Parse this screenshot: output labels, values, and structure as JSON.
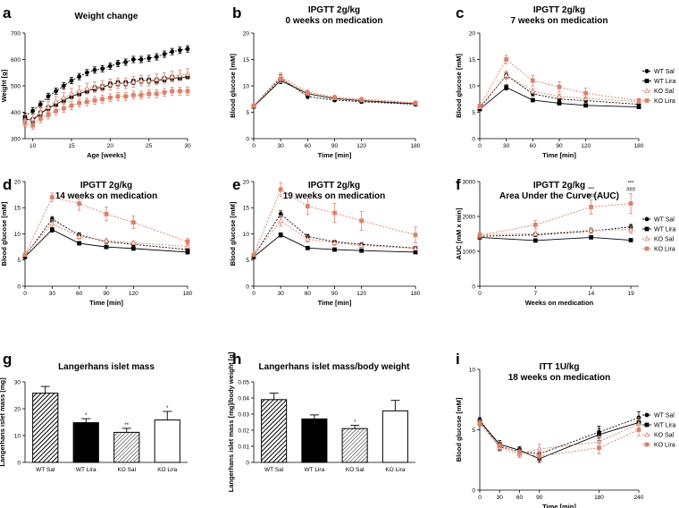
{
  "colors": {
    "wt_sal": "#000000",
    "wt_lira": "#000000",
    "ko_sal": "#d9826a",
    "ko_lira": "#d9826a",
    "grid": "#000000"
  },
  "chart_data": [
    {
      "id": "a",
      "panel_label": "a",
      "type": "line",
      "title": "Weight change",
      "xlabel": "Age [weeks]",
      "ylabel": "Weight [g]",
      "xlim": [
        9,
        30
      ],
      "ylim": [
        300,
        700
      ],
      "xticks": [
        10,
        15,
        20,
        25,
        30
      ],
      "yticks": [
        300,
        400,
        500,
        600,
        700
      ],
      "x": [
        9,
        10,
        11,
        12,
        13,
        14,
        15,
        16,
        17,
        18,
        19,
        20,
        21,
        22,
        23,
        24,
        25,
        26,
        27,
        28,
        29,
        30
      ],
      "series": [
        {
          "name": "WT Sal",
          "style": "wt_sal",
          "values": [
            385,
            405,
            430,
            460,
            480,
            500,
            520,
            535,
            550,
            560,
            565,
            575,
            585,
            590,
            600,
            600,
            605,
            610,
            620,
            630,
            635,
            640
          ],
          "err": [
            12,
            12,
            12,
            12,
            12,
            12,
            12,
            12,
            12,
            12,
            12,
            12,
            12,
            12,
            12,
            12,
            12,
            12,
            12,
            12,
            12,
            12
          ]
        },
        {
          "name": "WT Lira",
          "style": "wt_lira",
          "values": [
            375,
            370,
            395,
            415,
            430,
            445,
            460,
            470,
            480,
            490,
            495,
            505,
            510,
            510,
            515,
            520,
            520,
            520,
            525,
            530,
            530,
            535
          ],
          "err": [
            10,
            10,
            10,
            10,
            10,
            10,
            10,
            10,
            10,
            10,
            10,
            10,
            10,
            10,
            10,
            10,
            10,
            10,
            10,
            10,
            10,
            10
          ]
        },
        {
          "name": "KO Sal",
          "style": "ko_sal",
          "values": [
            370,
            375,
            400,
            420,
            440,
            455,
            470,
            480,
            490,
            495,
            500,
            505,
            510,
            510,
            515,
            520,
            520,
            525,
            530,
            535,
            540,
            545
          ],
          "err": [
            20,
            20,
            20,
            20,
            20,
            20,
            20,
            20,
            20,
            20,
            20,
            20,
            20,
            20,
            20,
            20,
            20,
            20,
            20,
            20,
            20,
            20
          ]
        },
        {
          "name": "KO Lira",
          "style": "ko_lira",
          "values": [
            360,
            350,
            375,
            390,
            405,
            415,
            425,
            435,
            440,
            445,
            450,
            455,
            460,
            460,
            465,
            465,
            470,
            470,
            475,
            480,
            480,
            480
          ],
          "err": [
            15,
            15,
            15,
            15,
            15,
            15,
            15,
            15,
            15,
            15,
            15,
            15,
            15,
            15,
            15,
            15,
            15,
            15,
            15,
            15,
            15,
            15
          ]
        }
      ]
    },
    {
      "id": "b",
      "panel_label": "b",
      "type": "line",
      "title": "IPGTT 2g/kg",
      "subtitle": "0 weeks on medication",
      "xlabel": "Time [min]",
      "ylabel": "Blood glucose [mM]",
      "xlim": [
        0,
        180
      ],
      "ylim": [
        0,
        20
      ],
      "xticks": [
        0,
        30,
        60,
        90,
        120,
        180
      ],
      "yticks": [
        0,
        5,
        10,
        15,
        20
      ],
      "x": [
        0,
        30,
        60,
        90,
        120,
        180
      ],
      "series": [
        {
          "name": "WT Sal",
          "style": "wt_sal",
          "values": [
            6.2,
            11.5,
            8.0,
            7.3,
            7.0,
            6.5
          ],
          "err": [
            0.3,
            0.6,
            0.4,
            0.3,
            0.3,
            0.3
          ]
        },
        {
          "name": "WT Lira",
          "style": "wt_lira",
          "values": [
            6.1,
            11.0,
            8.5,
            7.6,
            7.2,
            6.6
          ],
          "err": [
            0.3,
            0.6,
            0.4,
            0.3,
            0.3,
            0.3
          ]
        },
        {
          "name": "KO Sal",
          "style": "ko_sal",
          "values": [
            6.3,
            11.8,
            8.8,
            7.9,
            7.5,
            6.8
          ],
          "err": [
            0.3,
            0.7,
            0.4,
            0.3,
            0.3,
            0.3
          ]
        },
        {
          "name": "KO Lira",
          "style": "ko_lira",
          "values": [
            6.2,
            11.3,
            8.6,
            7.7,
            7.3,
            6.7
          ],
          "err": [
            0.3,
            0.6,
            0.4,
            0.3,
            0.3,
            0.3
          ]
        }
      ]
    },
    {
      "id": "c",
      "panel_label": "c",
      "type": "line",
      "title": "IPGTT 2g/kg",
      "subtitle": "7 weeks on medication",
      "xlabel": "Time [min]",
      "ylabel": "Blood glucose [mM]",
      "xlim": [
        0,
        180
      ],
      "ylim": [
        0,
        20
      ],
      "xticks": [
        0,
        30,
        60,
        90,
        120,
        180
      ],
      "yticks": [
        0,
        5,
        10,
        15,
        20
      ],
      "x": [
        0,
        30,
        60,
        90,
        120,
        180
      ],
      "legend": [
        "WT Sal",
        "WT Lira",
        "KO Sal",
        "KO Lira"
      ],
      "series": [
        {
          "name": "WT Sal",
          "style": "wt_sal",
          "values": [
            5.8,
            12.0,
            8.5,
            7.5,
            7.2,
            6.5
          ],
          "err": [
            0.3,
            0.5,
            0.4,
            0.3,
            0.3,
            0.3
          ]
        },
        {
          "name": "WT Lira",
          "style": "wt_lira",
          "values": [
            5.6,
            9.7,
            7.3,
            6.7,
            6.3,
            6.0
          ],
          "err": [
            0.3,
            0.5,
            0.3,
            0.3,
            0.3,
            0.3
          ]
        },
        {
          "name": "KO Sal",
          "style": "ko_sal",
          "values": [
            6.0,
            12.0,
            9.0,
            8.0,
            7.6,
            7.0
          ],
          "err": [
            0.3,
            0.8,
            0.5,
            0.4,
            0.3,
            0.3
          ]
        },
        {
          "name": "KO Lira",
          "style": "ko_lira",
          "values": [
            6.2,
            15.0,
            11.0,
            9.8,
            8.6,
            7.2
          ],
          "err": [
            0.3,
            0.8,
            1.0,
            1.0,
            1.0,
            0.4
          ]
        }
      ]
    },
    {
      "id": "d",
      "panel_label": "d",
      "type": "line",
      "title": "IPGTT 2g/kg",
      "subtitle": "14 weeks on medication",
      "xlabel": "Time [min]",
      "ylabel": "Blood glucose [mM]",
      "xlim": [
        0,
        180
      ],
      "ylim": [
        0,
        20
      ],
      "xticks": [
        0,
        30,
        60,
        90,
        120,
        180
      ],
      "yticks": [
        0,
        5,
        10,
        15,
        20
      ],
      "x": [
        0,
        30,
        60,
        90,
        120,
        180
      ],
      "series": [
        {
          "name": "WT Sal",
          "style": "wt_sal",
          "values": [
            5.8,
            12.8,
            9.8,
            8.5,
            8.0,
            7.0
          ],
          "err": [
            0.3,
            0.5,
            0.4,
            0.3,
            0.3,
            0.3
          ]
        },
        {
          "name": "WT Lira",
          "style": "wt_lira",
          "values": [
            5.6,
            10.8,
            8.2,
            7.5,
            7.2,
            6.5
          ],
          "err": [
            0.3,
            0.5,
            0.3,
            0.3,
            0.3,
            0.3
          ]
        },
        {
          "name": "KO Sal",
          "style": "ko_sal",
          "values": [
            6.0,
            12.0,
            9.5,
            8.7,
            8.3,
            7.6
          ],
          "err": [
            0.3,
            0.7,
            0.5,
            0.4,
            0.3,
            0.3
          ]
        },
        {
          "name": "KO Lira",
          "style": "ko_lira",
          "values": [
            6.0,
            17.0,
            15.8,
            13.8,
            12.2,
            8.5
          ],
          "err": [
            0.3,
            0.8,
            1.3,
            1.3,
            1.2,
            0.6
          ]
        }
      ]
    },
    {
      "id": "e",
      "panel_label": "e",
      "type": "line",
      "title": "IPGTT 2g/kg",
      "subtitle": "19 weeks on medication",
      "xlabel": "Time [min]",
      "ylabel": "Blood glucose [mM]",
      "xlim": [
        0,
        180
      ],
      "ylim": [
        0,
        20
      ],
      "xticks": [
        0,
        30,
        60,
        90,
        120,
        180
      ],
      "yticks": [
        0,
        5,
        10,
        15,
        20
      ],
      "x": [
        0,
        30,
        60,
        90,
        120,
        180
      ],
      "series": [
        {
          "name": "WT Sal",
          "style": "wt_sal",
          "values": [
            5.8,
            13.8,
            9.5,
            8.5,
            8.0,
            7.3
          ],
          "err": [
            0.3,
            0.6,
            0.4,
            0.3,
            0.3,
            0.3
          ]
        },
        {
          "name": "WT Lira",
          "style": "wt_lira",
          "values": [
            5.6,
            9.8,
            7.3,
            7.0,
            6.8,
            6.5
          ],
          "err": [
            0.3,
            0.4,
            0.3,
            0.3,
            0.3,
            0.3
          ]
        },
        {
          "name": "KO Sal",
          "style": "ko_sal",
          "values": [
            6.0,
            12.5,
            9.0,
            8.3,
            7.8,
            7.2
          ],
          "err": [
            0.3,
            1.0,
            0.6,
            0.5,
            0.4,
            0.3
          ]
        },
        {
          "name": "KO Lira",
          "style": "ko_lira",
          "values": [
            6.0,
            18.5,
            15.3,
            14.0,
            12.5,
            9.8
          ],
          "err": [
            0.3,
            1.3,
            1.6,
            1.8,
            1.8,
            1.5
          ]
        }
      ]
    },
    {
      "id": "f",
      "panel_label": "f",
      "type": "line",
      "title": "IPGTT 2g/kg",
      "subtitle": "Area Under the Curve (AUC)",
      "xlabel": "Weeks on medication",
      "ylabel": "AUC [mM x min]",
      "xlim": [
        0,
        20
      ],
      "ylim": [
        0,
        3000
      ],
      "xticks": [
        0,
        7,
        14,
        19
      ],
      "yticks": [
        0,
        1000,
        2000,
        3000
      ],
      "x": [
        0,
        7,
        14,
        19
      ],
      "legend": [
        "WT Sal",
        "WT Lira",
        "KO Sal",
        "KO Lira"
      ],
      "annotations": [
        {
          "x": 14,
          "lines": [
            "***",
            "###"
          ]
        },
        {
          "x": 19,
          "lines": [
            "***",
            "###"
          ]
        }
      ],
      "series": [
        {
          "name": "WT Sal",
          "style": "wt_sal",
          "values": [
            1430,
            1470,
            1580,
            1700
          ],
          "err": [
            50,
            50,
            60,
            70
          ]
        },
        {
          "name": "WT Lira",
          "style": "wt_lira",
          "values": [
            1400,
            1310,
            1400,
            1320
          ],
          "err": [
            40,
            40,
            40,
            40
          ]
        },
        {
          "name": "KO Sal",
          "style": "ko_sal",
          "values": [
            1480,
            1500,
            1600,
            1620
          ],
          "err": [
            60,
            60,
            80,
            100
          ]
        },
        {
          "name": "KO Lira",
          "style": "ko_lira",
          "values": [
            1460,
            1760,
            2270,
            2370
          ],
          "err": [
            80,
            120,
            200,
            280
          ]
        }
      ]
    },
    {
      "id": "g",
      "panel_label": "g",
      "type": "bar",
      "title": "Langerhans islet mass",
      "ylabel": "Langerhans islet mass [mg]",
      "ylim": [
        0,
        30
      ],
      "yticks": [
        0,
        10,
        20,
        30
      ],
      "categories": [
        "WT Sal",
        "WT Lira",
        "KO Sal",
        "KO Lira"
      ],
      "fills": [
        "hatch-dense",
        "solid",
        "hatch-light",
        "white"
      ],
      "values": [
        25.8,
        14.8,
        11.2,
        15.8
      ],
      "err": [
        2.5,
        1.5,
        1.5,
        3.2
      ],
      "sig": [
        "",
        "*",
        "**",
        "*"
      ]
    },
    {
      "id": "h",
      "panel_label": "h",
      "type": "bar",
      "title": "Langerhans islet mass/body weight",
      "ylabel": "Langerhans islet mass [mg]/body weight [g]",
      "ylim": [
        0,
        0.05
      ],
      "yticks": [
        0,
        0.01,
        0.02,
        0.03,
        0.04,
        0.05
      ],
      "yticklabels": [
        "0",
        "0.01",
        "0.02",
        "0.03",
        "0.04",
        "0.05"
      ],
      "categories": [
        "WT Sal",
        "WT Lira",
        "KO Sal",
        "KO Lira"
      ],
      "fills": [
        "hatch-dense",
        "solid",
        "hatch-light",
        "white"
      ],
      "values": [
        0.039,
        0.027,
        0.021,
        0.032
      ],
      "err": [
        0.004,
        0.0025,
        0.002,
        0.0065
      ],
      "sig": [
        "",
        "",
        "*",
        ""
      ]
    },
    {
      "id": "i",
      "panel_label": "i",
      "type": "line",
      "title": "ITT 1U/kg",
      "subtitle": "18 weeks on medication",
      "xlabel": "Time [min]",
      "ylabel": "Blood glucose [mM]",
      "xlim": [
        0,
        240
      ],
      "ylim": [
        0,
        10
      ],
      "xticks": [
        0,
        30,
        60,
        90,
        180,
        240
      ],
      "yticks": [
        0,
        5,
        10
      ],
      "x": [
        0,
        30,
        60,
        90,
        180,
        240
      ],
      "legend": [
        "WT Sal",
        "WT Lira",
        "KO Sal",
        "KO Lira"
      ],
      "series": [
        {
          "name": "WT Sal",
          "style": "wt_sal",
          "values": [
            5.8,
            3.6,
            3.2,
            3.0,
            4.8,
            6.0
          ],
          "err": [
            0.2,
            0.3,
            0.3,
            0.3,
            0.5,
            0.5
          ]
        },
        {
          "name": "WT Lira",
          "style": "wt_lira",
          "values": [
            5.7,
            3.8,
            3.3,
            2.6,
            4.6,
            5.6
          ],
          "err": [
            0.2,
            0.3,
            0.3,
            0.3,
            0.5,
            0.5
          ]
        },
        {
          "name": "KO Sal",
          "style": "ko_sal",
          "values": [
            5.6,
            3.5,
            3.0,
            3.4,
            4.0,
            5.5
          ],
          "err": [
            0.2,
            0.3,
            0.3,
            0.4,
            0.5,
            0.5
          ]
        },
        {
          "name": "KO Lira",
          "style": "ko_lira",
          "values": [
            5.5,
            3.7,
            3.1,
            2.8,
            3.5,
            5.0
          ],
          "err": [
            0.2,
            0.3,
            0.3,
            0.3,
            0.5,
            0.5
          ]
        }
      ]
    }
  ]
}
